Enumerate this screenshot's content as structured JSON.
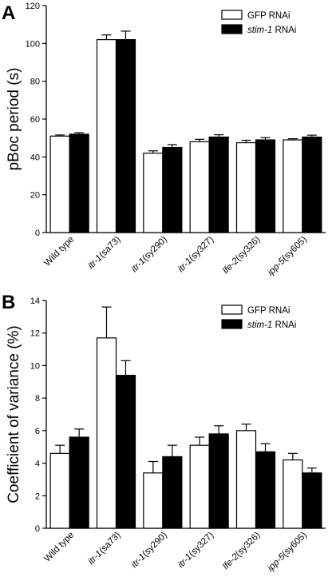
{
  "chart_data": [
    {
      "panel_label": "A",
      "type": "bar",
      "ylabel": "pBoc period (s)",
      "ylim": [
        0,
        120
      ],
      "yticks": [
        0,
        20,
        40,
        60,
        80,
        100,
        120
      ],
      "categories": [
        "Wild type",
        "itr-1(sa73)",
        "itr-1(sy290)",
        "itr-1(sy327)",
        "lfe-2(sy326)",
        "ipp-5(sy605)"
      ],
      "category_italic_prefix": [
        "",
        "itr-1",
        "itr-1",
        "itr-1",
        "lfe-2",
        "ipp-5"
      ],
      "category_rest": [
        "Wild type",
        "(sa73)",
        "(sy290)",
        "(sy327)",
        "(sy326)",
        "(sy605)"
      ],
      "series": [
        {
          "name": "GFP RNAi",
          "name_italic": "",
          "name_rest": "GFP RNAi",
          "color": "#ffffff",
          "values": [
            51,
            102,
            42,
            48,
            47.5,
            49
          ],
          "errors": [
            0.6,
            2.5,
            1.2,
            1.3,
            1.3,
            0.6
          ]
        },
        {
          "name": "stim-1 RNAi",
          "name_italic": "stim-1",
          "name_rest": " RNAi",
          "color": "#000000",
          "values": [
            52,
            102,
            45,
            50.5,
            49,
            50.5
          ],
          "errors": [
            0.8,
            4.5,
            1.5,
            1.2,
            1.2,
            1.0
          ]
        }
      ],
      "legend": "top-right"
    },
    {
      "panel_label": "B",
      "type": "bar",
      "ylabel": "Coefficient of variance (%)",
      "ylim": [
        0,
        14
      ],
      "yticks": [
        0,
        2,
        4,
        6,
        8,
        10,
        12,
        14
      ],
      "categories": [
        "Wild type",
        "itr-1(sa73)",
        "itr-1(sy290)",
        "itr-1(sy327)",
        "lfe-2(sy326)",
        "ipp-5(sy605)"
      ],
      "category_italic_prefix": [
        "",
        "itr-1",
        "itr-1",
        "itr-1",
        "lfe-2",
        "ipp-5"
      ],
      "category_rest": [
        "Wild type",
        "(sa73)",
        "(sy290)",
        "(sy327)",
        "(sy326)",
        "(sy605)"
      ],
      "series": [
        {
          "name": "GFP RNAi",
          "name_italic": "",
          "name_rest": "GFP RNAi",
          "color": "#ffffff",
          "values": [
            4.6,
            11.7,
            3.4,
            5.1,
            6.0,
            4.2
          ],
          "errors": [
            0.5,
            1.9,
            0.7,
            0.5,
            0.4,
            0.4
          ]
        },
        {
          "name": "stim-1 RNAi",
          "name_italic": "stim-1",
          "name_rest": " RNAi",
          "color": "#000000",
          "values": [
            5.6,
            9.4,
            4.4,
            5.8,
            4.7,
            3.4
          ],
          "errors": [
            0.5,
            0.9,
            0.7,
            0.5,
            0.5,
            0.3
          ]
        }
      ],
      "legend": "top-right"
    }
  ]
}
